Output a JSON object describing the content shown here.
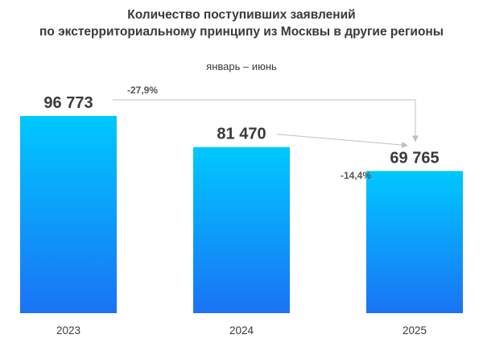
{
  "title_lines": [
    "Количество поступивших заявлений",
    "по экстерриториальному принципу из Москвы в другие регионы"
  ],
  "subtitle": "январь – июнь",
  "colors": {
    "bar_top": "#00c8ff",
    "bar_bottom": "#1a73f5",
    "arrow": "#c0c0c0",
    "text": "#3a3a3a"
  },
  "chart_data": {
    "type": "bar",
    "categories": [
      "2023",
      "2024",
      "2025"
    ],
    "values": [
      96773,
      81470,
      69765
    ],
    "value_labels": [
      "96 773",
      "81 470",
      "69 765"
    ],
    "annotations": [
      {
        "from": "2023",
        "to": "2025",
        "text": "-27,9%"
      },
      {
        "from": "2024",
        "to": "2025",
        "text": "-14,4%"
      }
    ],
    "title": "Количество поступивших заявлений по экстерриториальному принципу из Москвы в другие регионы",
    "xlabel": "",
    "ylabel": "",
    "grid": false,
    "legend": false
  }
}
